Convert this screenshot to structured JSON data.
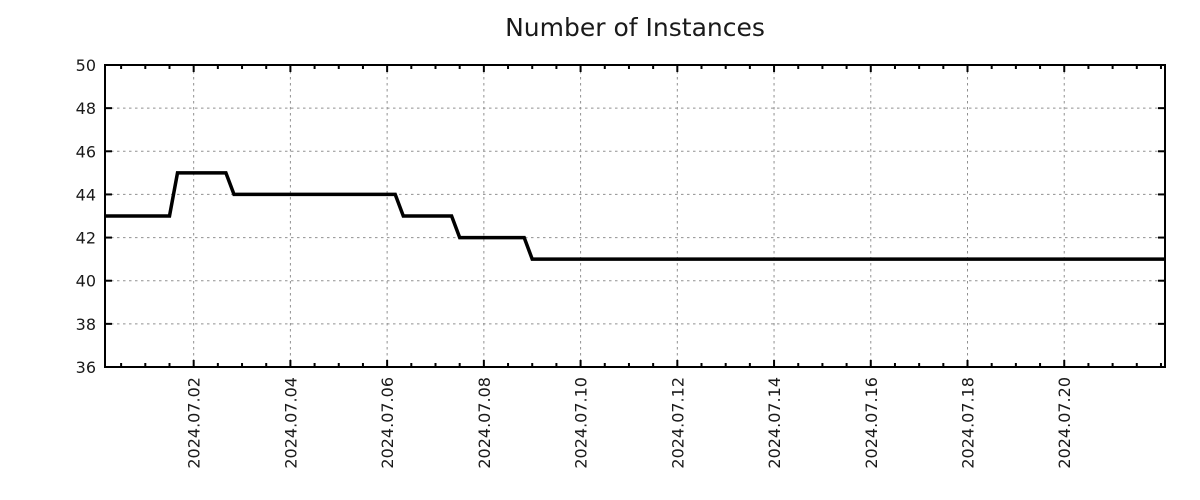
{
  "chart_data": {
    "type": "line",
    "title": "Number of Instances",
    "x_axis": {
      "min": "2024-06-30 04:00",
      "max": "2024-07-22 02:00",
      "minor_interval_hours": 12,
      "major_ticks": [
        {
          "date": "2024-07-02",
          "label": "2024.07.02"
        },
        {
          "date": "2024-07-04",
          "label": "2024.07.04"
        },
        {
          "date": "2024-07-06",
          "label": "2024.07.06"
        },
        {
          "date": "2024-07-08",
          "label": "2024.07.08"
        },
        {
          "date": "2024-07-10",
          "label": "2024.07.10"
        },
        {
          "date": "2024-07-12",
          "label": "2024.07.12"
        },
        {
          "date": "2024-07-14",
          "label": "2024.07.14"
        },
        {
          "date": "2024-07-16",
          "label": "2024.07.16"
        },
        {
          "date": "2024-07-18",
          "label": "2024.07.18"
        },
        {
          "date": "2024-07-20",
          "label": "2024.07.20"
        }
      ]
    },
    "y_axis": {
      "min": 36,
      "max": 50,
      "tick_step": 2,
      "ticks": [
        36,
        38,
        40,
        42,
        44,
        46,
        48,
        50
      ]
    },
    "grid": true,
    "legend": "none",
    "colors": {
      "line": "#000000",
      "grid": "#909090",
      "axis": "#000000",
      "text": "#1a1a1a",
      "background": "#ffffff"
    },
    "series": [
      {
        "name": "instances",
        "points": [
          [
            "2024-06-30 04:00",
            43
          ],
          [
            "2024-07-01 12:00",
            43
          ],
          [
            "2024-07-01 16:00",
            45
          ],
          [
            "2024-07-02 16:00",
            45
          ],
          [
            "2024-07-02 20:00",
            44
          ],
          [
            "2024-07-06 04:00",
            44
          ],
          [
            "2024-07-06 08:00",
            43
          ],
          [
            "2024-07-07 08:00",
            43
          ],
          [
            "2024-07-07 12:00",
            42
          ],
          [
            "2024-07-08 20:00",
            42
          ],
          [
            "2024-07-09 00:00",
            41
          ],
          [
            "2024-07-22 02:00",
            41
          ]
        ]
      }
    ]
  }
}
